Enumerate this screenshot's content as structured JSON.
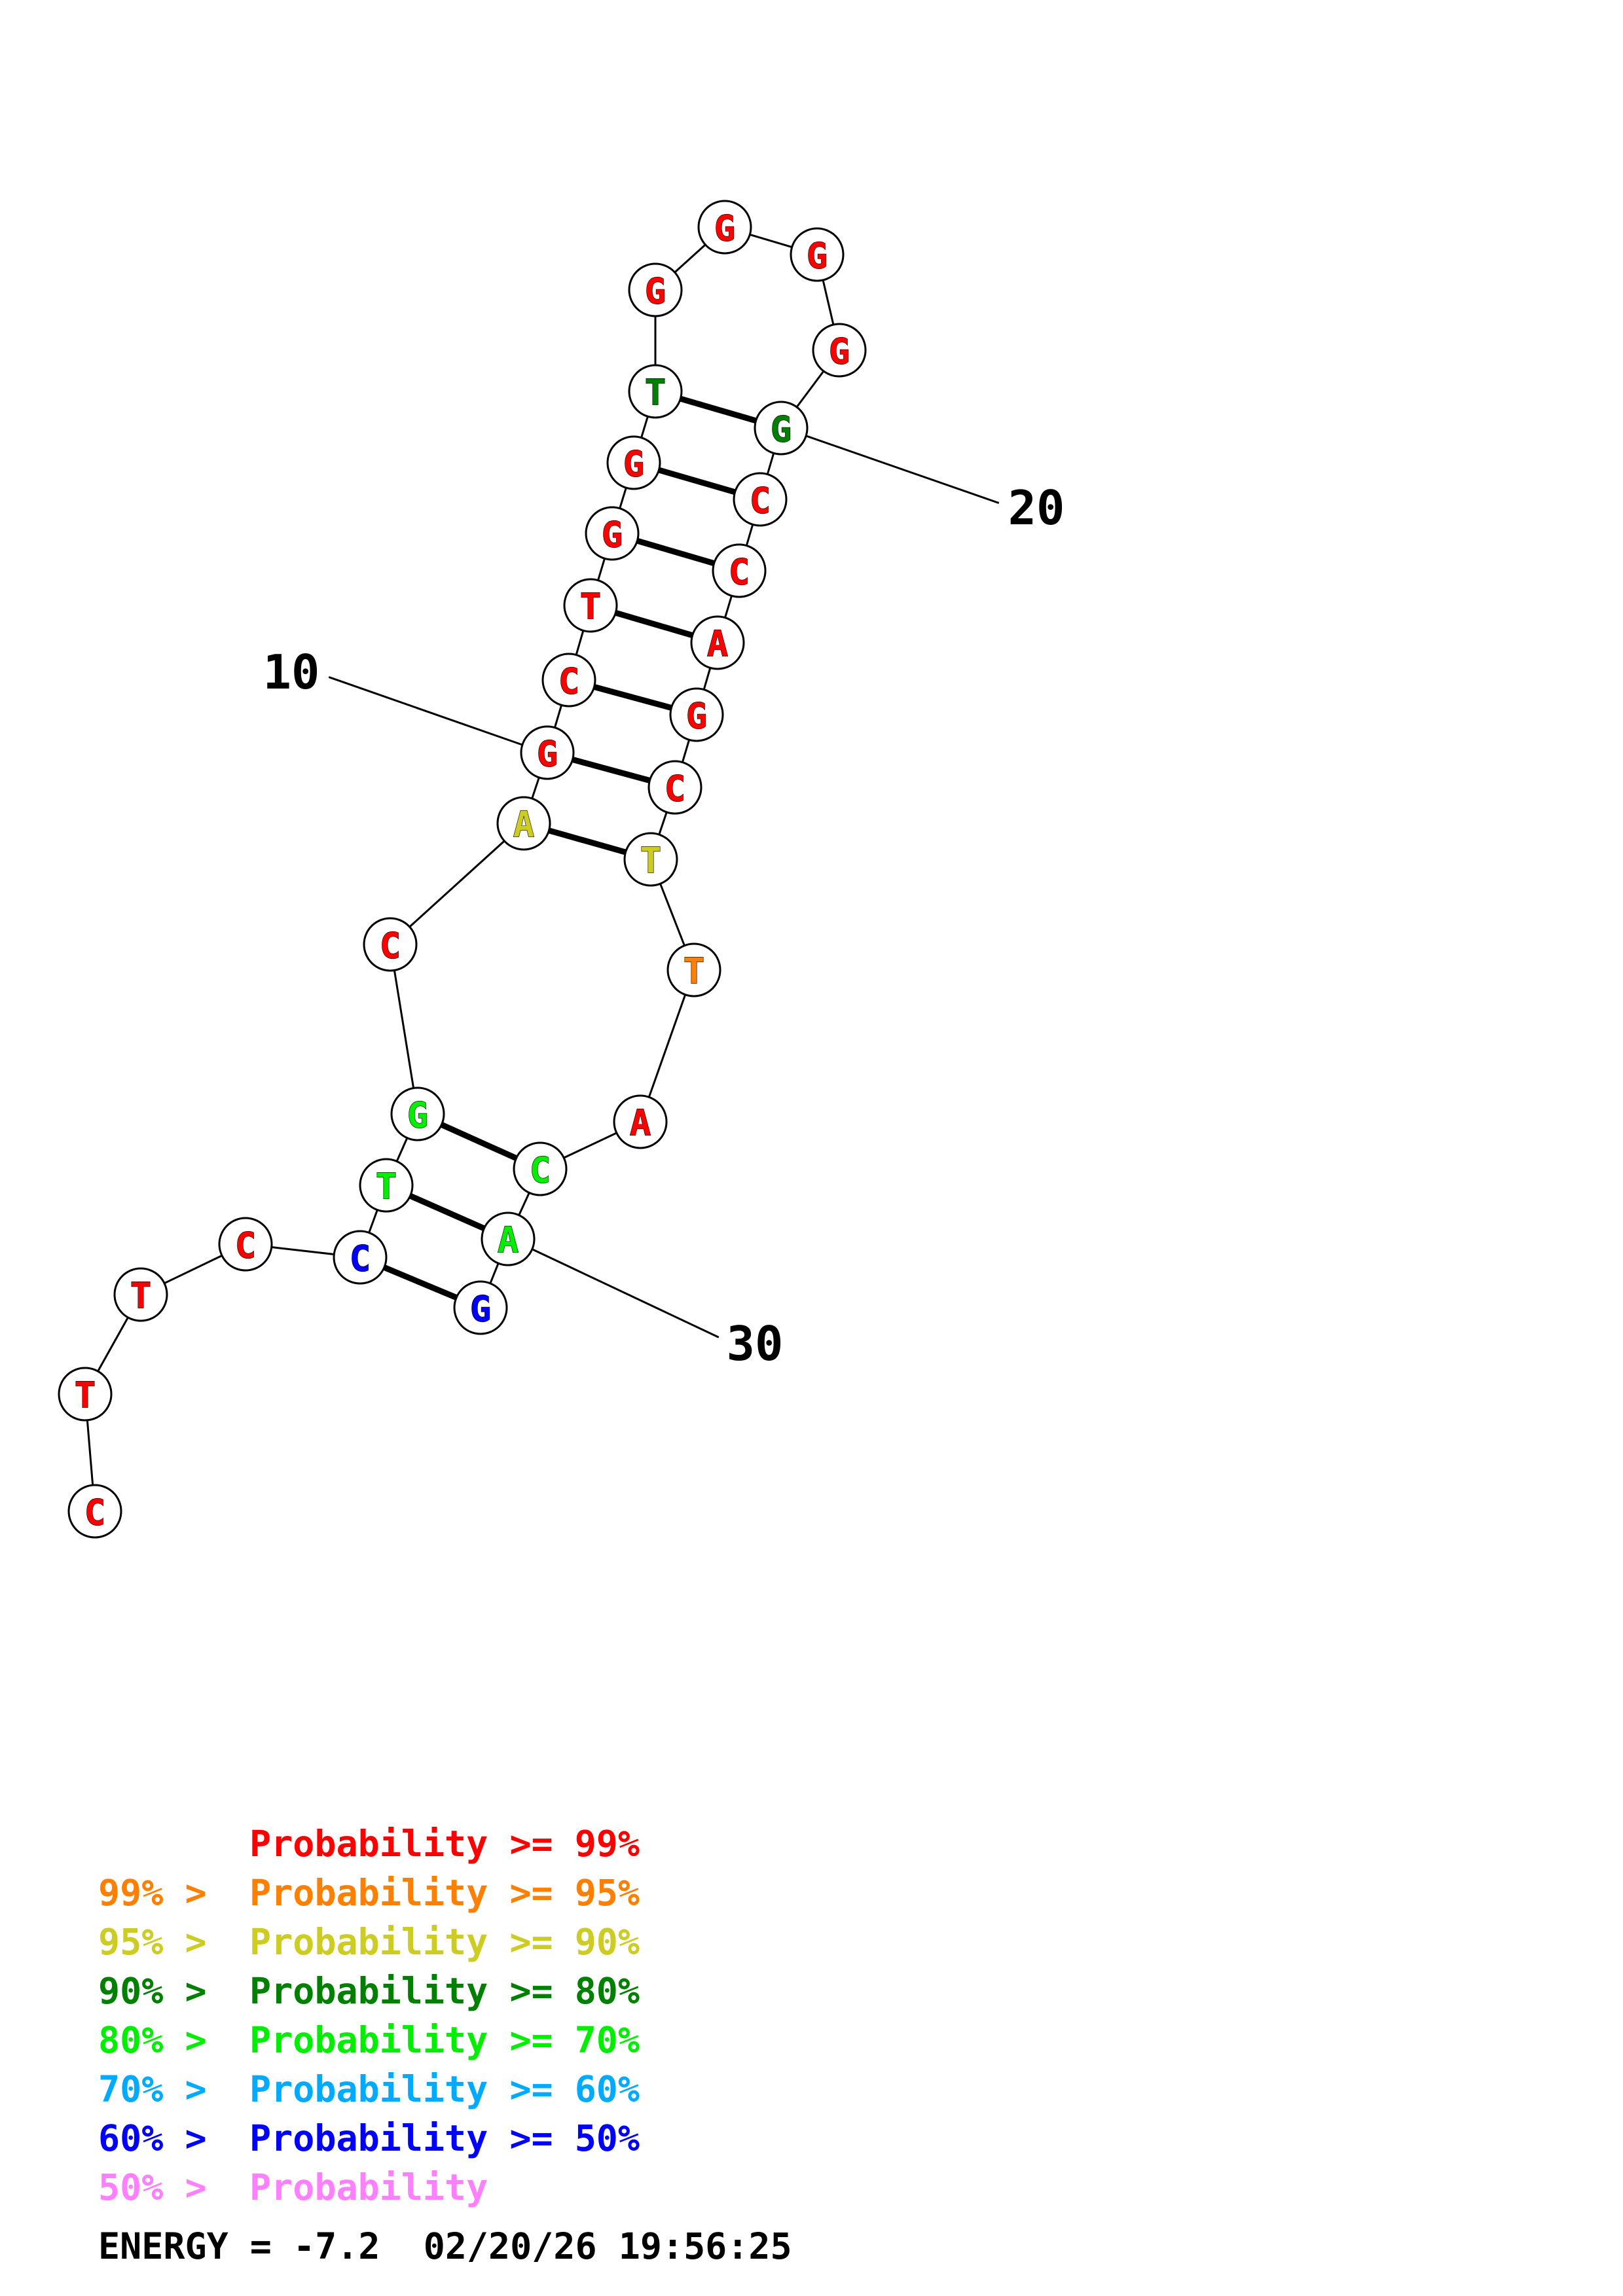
{
  "colors": {
    "p99": "#ff0000",
    "p95": "#ff8000",
    "p90": "#cccc22",
    "p80": "#008000",
    "p70": "#00ee00",
    "p60": "#00aaff",
    "p50": "#0000ff",
    "plow": "#ff80ff"
  },
  "nucleotides": [
    {
      "n": 1,
      "base": "C",
      "color": "p99"
    },
    {
      "n": 2,
      "base": "T",
      "color": "p99"
    },
    {
      "n": 3,
      "base": "T",
      "color": "p99"
    },
    {
      "n": 4,
      "base": "C",
      "color": "p99"
    },
    {
      "n": 5,
      "base": "C",
      "color": "p50"
    },
    {
      "n": 6,
      "base": "T",
      "color": "p70"
    },
    {
      "n": 7,
      "base": "G",
      "color": "p70"
    },
    {
      "n": 8,
      "base": "C",
      "color": "p99"
    },
    {
      "n": 9,
      "base": "A",
      "color": "p90"
    },
    {
      "n": 10,
      "base": "G",
      "color": "p99"
    },
    {
      "n": 11,
      "base": "C",
      "color": "p99"
    },
    {
      "n": 12,
      "base": "T",
      "color": "p99"
    },
    {
      "n": 13,
      "base": "G",
      "color": "p99"
    },
    {
      "n": 14,
      "base": "G",
      "color": "p99"
    },
    {
      "n": 15,
      "base": "T",
      "color": "p80"
    },
    {
      "n": 16,
      "base": "G",
      "color": "p99"
    },
    {
      "n": 17,
      "base": "G",
      "color": "p99"
    },
    {
      "n": 18,
      "base": "G",
      "color": "p99"
    },
    {
      "n": 19,
      "base": "G",
      "color": "p99"
    },
    {
      "n": 20,
      "base": "G",
      "color": "p80"
    },
    {
      "n": 21,
      "base": "C",
      "color": "p99"
    },
    {
      "n": 22,
      "base": "C",
      "color": "p99"
    },
    {
      "n": 23,
      "base": "A",
      "color": "p99"
    },
    {
      "n": 24,
      "base": "G",
      "color": "p99"
    },
    {
      "n": 25,
      "base": "C",
      "color": "p99"
    },
    {
      "n": 26,
      "base": "T",
      "color": "p90"
    },
    {
      "n": 27,
      "base": "T",
      "color": "p95"
    },
    {
      "n": 28,
      "base": "A",
      "color": "p99"
    },
    {
      "n": 29,
      "base": "C",
      "color": "p70"
    },
    {
      "n": 30,
      "base": "A",
      "color": "p70"
    },
    {
      "n": 31,
      "base": "G",
      "color": "p50"
    }
  ],
  "base_pairs": [
    [
      5,
      31
    ],
    [
      6,
      30
    ],
    [
      7,
      29
    ],
    [
      9,
      26
    ],
    [
      10,
      25
    ],
    [
      11,
      24
    ],
    [
      12,
      23
    ],
    [
      13,
      22
    ],
    [
      14,
      21
    ],
    [
      15,
      20
    ]
  ],
  "position_labels": [
    {
      "n": 10,
      "text": "10"
    },
    {
      "n": 20,
      "text": "20"
    },
    {
      "n": 30,
      "text": "30"
    }
  ],
  "legend": [
    {
      "prefix": "    ",
      "label": "Probability >= 99%",
      "color": "p99"
    },
    {
      "prefix": "99% > ",
      "label": "Probability >= 95%",
      "color": "p95"
    },
    {
      "prefix": "95% > ",
      "label": "Probability >= 90%",
      "color": "p90"
    },
    {
      "prefix": "90% > ",
      "label": "Probability >= 80%",
      "color": "p80"
    },
    {
      "prefix": "80% > ",
      "label": "Probability >= 70%",
      "color": "p70"
    },
    {
      "prefix": "70% > ",
      "label": "Probability >= 60%",
      "color": "p60"
    },
    {
      "prefix": "60% > ",
      "label": "Probability >= 50%",
      "color": "p50"
    },
    {
      "prefix": "50% > ",
      "label": "Probability",
      "color": "plow"
    }
  ],
  "energy": {
    "label": "ENERGY = -7.2",
    "date": "02/20/26",
    "time": "19:56:25"
  }
}
